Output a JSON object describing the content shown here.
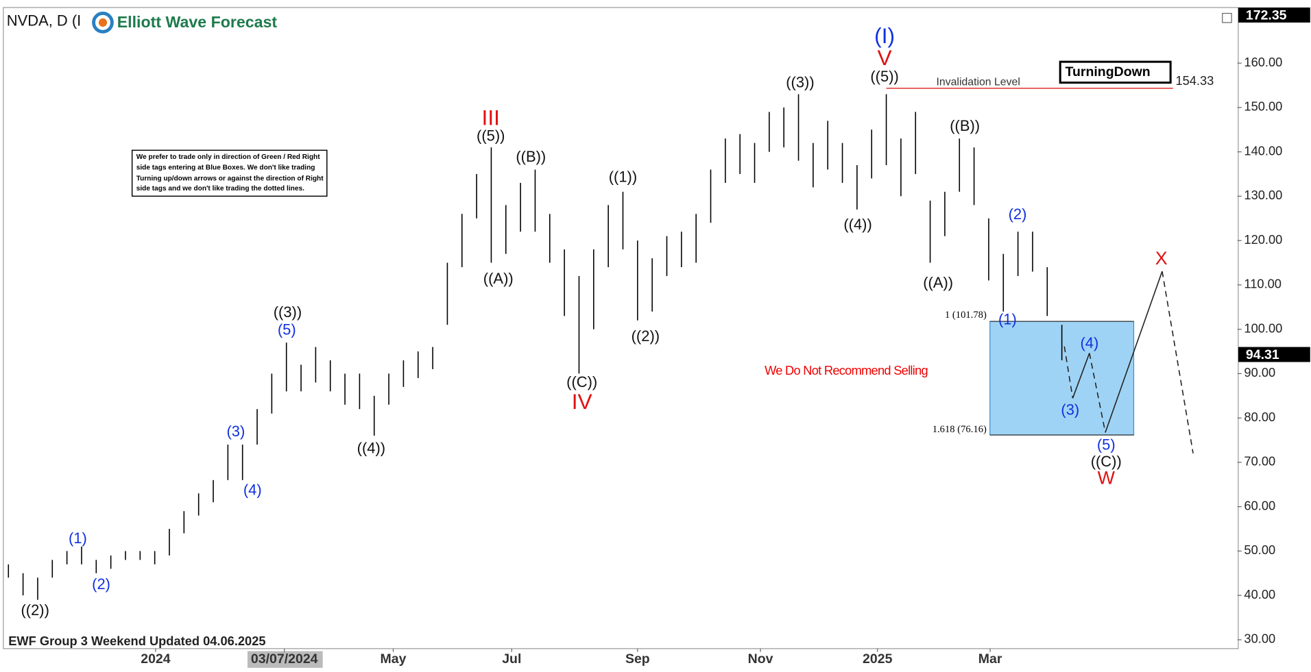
{
  "chart_data": {
    "type": "range-bar",
    "title": "NVDA, D (I",
    "brand": "Elliott Wave Forecast",
    "footer": "EWF Group 3 Weekend Updated 04.06.2025",
    "note": [
      "We prefer to trade only in direction of Green / Red Right",
      "side tags entering at Blue Boxes. We don't like trading",
      "Turning up/down arrows or against the direction of Right",
      "side tags and we don't like trading the dotted lines."
    ],
    "badge": "TurningDown",
    "sell_note": "We Do Not Recommend Selling",
    "series": [
      {
        "name": "NVDA",
        "color": "#000000",
        "high": [
          47,
          45,
          44,
          48,
          50,
          51,
          48,
          49,
          50,
          50,
          50,
          55,
          59,
          63,
          66,
          74,
          74,
          82,
          90,
          97,
          92,
          96,
          93,
          90,
          90,
          85,
          90,
          93,
          95,
          96,
          115,
          126,
          135,
          141,
          128,
          133,
          136,
          126,
          118,
          112,
          118,
          128,
          131,
          120,
          116,
          121,
          122,
          126,
          136,
          143,
          144,
          142,
          149,
          150,
          153,
          142,
          147,
          142,
          137,
          145,
          153,
          143,
          149,
          129,
          131,
          143,
          141,
          125,
          117,
          122,
          122,
          114,
          101
        ],
        "low": [
          44,
          40,
          39,
          44,
          47,
          47,
          45,
          46,
          48,
          48,
          47,
          49,
          54,
          58,
          61,
          66,
          66,
          74,
          81,
          86,
          86,
          88,
          86,
          83,
          82,
          76,
          83,
          87,
          89,
          91,
          101,
          114,
          125,
          115,
          117,
          122,
          122,
          115,
          103,
          90,
          100,
          114,
          118,
          102,
          104,
          112,
          114,
          115,
          124,
          133,
          135,
          133,
          140,
          141,
          138,
          132,
          136,
          133,
          127,
          134,
          137,
          130,
          135,
          115,
          121,
          131,
          128,
          111,
          104,
          112,
          113,
          103,
          93
        ]
      }
    ],
    "last_price": {
      "value": 94.31,
      "label": "94.31"
    },
    "top_price": {
      "value": 172.35,
      "label": "172.35"
    },
    "invalidation": {
      "text": "Invalidation Level",
      "value": 154.33,
      "label": "154.33"
    },
    "box": {
      "top": 101.78,
      "bottom": 76.16,
      "top_label": "1 (101.78)",
      "bottom_label": "1.618 (76.16)"
    },
    "annotations": [
      "((2))",
      "(1)",
      "(2)",
      "(3)",
      "(4)",
      "((3))",
      "(5)",
      "((4))",
      "III",
      "((5))",
      "((A))",
      "((B))",
      "((C))",
      "IV",
      "((1))",
      "((2))",
      "((3))",
      "(I)",
      "V",
      "((5))",
      "((4))",
      "((A))",
      "((B))",
      "(1)",
      "(2)",
      "(3)",
      "(4)",
      "(5)",
      "((C))",
      "W",
      "X"
    ],
    "xlim": [
      -0.29,
      84
    ],
    "xticks": [
      {
        "value": 10.06,
        "label": "2024"
      },
      {
        "value": 18.86,
        "label": "03/07/2024"
      },
      {
        "value": 26.3,
        "label": "May"
      },
      {
        "value": 34.4,
        "label": "Jul"
      },
      {
        "value": 43.0,
        "label": "Sep"
      },
      {
        "value": 51.4,
        "label": "Nov"
      },
      {
        "value": 59.4,
        "label": "2025"
      },
      {
        "value": 67.1,
        "label": "Mar"
      }
    ],
    "ylim": [
      28,
      172.35
    ],
    "yticks": [
      {
        "value": 30,
        "label": "30.00"
      },
      {
        "value": 40,
        "label": "40.00"
      },
      {
        "value": 50,
        "label": "50.00"
      },
      {
        "value": 60,
        "label": "60.00"
      },
      {
        "value": 70,
        "label": "70.00"
      },
      {
        "value": 80,
        "label": "80.00"
      },
      {
        "value": 90,
        "label": "90.00"
      },
      {
        "value": 100,
        "label": "100.00"
      },
      {
        "value": 110,
        "label": "110.00"
      },
      {
        "value": 120,
        "label": "120.00"
      },
      {
        "value": 130,
        "label": "130.00"
      },
      {
        "value": 140,
        "label": "140.00"
      },
      {
        "value": 150,
        "label": "150.00"
      },
      {
        "value": 160,
        "label": "160.00"
      }
    ]
  }
}
